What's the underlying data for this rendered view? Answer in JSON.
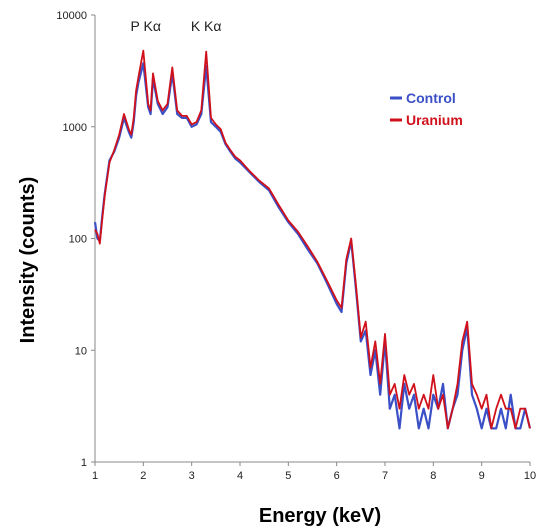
{
  "chart_data": {
    "type": "line",
    "xlabel": "Energy (keV)",
    "ylabel": "Intensity (counts)",
    "xlim": [
      1,
      10
    ],
    "ylim": [
      1,
      10000
    ],
    "yscale": "log",
    "grid": false,
    "legend_position": "top-right",
    "x_ticks": [
      "1",
      "2",
      "3",
      "4",
      "5",
      "6",
      "7",
      "8",
      "9",
      "10"
    ],
    "y_ticks": [
      "1",
      "10",
      "100",
      "1000",
      "10000"
    ],
    "annotations": [
      {
        "text": "P Kα",
        "x": 2.05,
        "y": 8000
      },
      {
        "text": "K Kα",
        "x": 3.3,
        "y": 8000
      }
    ],
    "series": [
      {
        "name": "Control",
        "color": "#3b4fc6",
        "x": [
          1.0,
          1.05,
          1.1,
          1.15,
          1.2,
          1.3,
          1.4,
          1.5,
          1.6,
          1.7,
          1.75,
          1.8,
          1.85,
          1.9,
          2.0,
          2.1,
          2.15,
          2.2,
          2.3,
          2.4,
          2.5,
          2.6,
          2.7,
          2.8,
          2.9,
          3.0,
          3.1,
          3.2,
          3.3,
          3.4,
          3.5,
          3.6,
          3.7,
          3.8,
          3.9,
          4.0,
          4.2,
          4.4,
          4.6,
          4.8,
          5.0,
          5.2,
          5.4,
          5.6,
          5.8,
          6.0,
          6.1,
          6.2,
          6.3,
          6.4,
          6.5,
          6.6,
          6.7,
          6.8,
          6.9,
          7.0,
          7.1,
          7.2,
          7.3,
          7.4,
          7.5,
          7.6,
          7.7,
          7.8,
          7.9,
          8.0,
          8.1,
          8.2,
          8.3,
          8.4,
          8.5,
          8.6,
          8.7,
          8.8,
          8.9,
          9.0,
          9.1,
          9.2,
          9.3,
          9.4,
          9.5,
          9.6,
          9.7,
          9.8,
          9.9,
          10.0
        ],
        "y": [
          140,
          100,
          95,
          160,
          250,
          500,
          600,
          800,
          1200,
          900,
          800,
          1100,
          1900,
          2500,
          3700,
          1500,
          1300,
          2700,
          1600,
          1300,
          1500,
          3000,
          1300,
          1200,
          1200,
          1000,
          1050,
          1300,
          3500,
          1100,
          1000,
          900,
          700,
          600,
          520,
          480,
          390,
          320,
          270,
          190,
          140,
          110,
          80,
          60,
          40,
          26,
          22,
          60,
          95,
          35,
          12,
          15,
          6,
          10,
          4,
          12,
          3,
          4,
          2,
          5,
          3,
          4,
          2,
          3,
          2,
          4,
          3,
          5,
          2,
          3,
          4,
          10,
          16,
          4,
          3,
          2,
          3,
          2,
          2,
          3,
          2,
          4,
          2,
          2,
          3,
          2
        ]
      },
      {
        "name": "Uranium",
        "color": "#d0111b",
        "x": [
          1.0,
          1.05,
          1.1,
          1.15,
          1.2,
          1.3,
          1.4,
          1.5,
          1.6,
          1.7,
          1.75,
          1.8,
          1.85,
          1.9,
          2.0,
          2.1,
          2.15,
          2.2,
          2.3,
          2.4,
          2.5,
          2.6,
          2.7,
          2.8,
          2.9,
          3.0,
          3.1,
          3.2,
          3.3,
          3.4,
          3.5,
          3.6,
          3.7,
          3.8,
          3.9,
          4.0,
          4.2,
          4.4,
          4.6,
          4.8,
          5.0,
          5.2,
          5.4,
          5.6,
          5.8,
          6.0,
          6.1,
          6.2,
          6.3,
          6.4,
          6.5,
          6.6,
          6.7,
          6.8,
          6.9,
          7.0,
          7.1,
          7.2,
          7.3,
          7.4,
          7.5,
          7.6,
          7.7,
          7.8,
          7.9,
          8.0,
          8.1,
          8.2,
          8.3,
          8.4,
          8.5,
          8.6,
          8.7,
          8.8,
          8.9,
          9.0,
          9.1,
          9.2,
          9.3,
          9.4,
          9.5,
          9.6,
          9.7,
          9.8,
          9.9,
          10.0
        ],
        "y": [
          120,
          110,
          90,
          150,
          240,
          480,
          620,
          850,
          1300,
          950,
          850,
          1200,
          2100,
          2800,
          4800,
          1600,
          1400,
          3000,
          1700,
          1400,
          1600,
          3400,
          1400,
          1250,
          1250,
          1050,
          1100,
          1400,
          4700,
          1200,
          1050,
          950,
          720,
          620,
          540,
          500,
          400,
          330,
          280,
          200,
          145,
          115,
          85,
          62,
          42,
          28,
          24,
          65,
          100,
          38,
          13,
          18,
          7,
          12,
          5,
          14,
          4,
          5,
          3,
          6,
          4,
          5,
          3,
          4,
          3,
          6,
          3,
          4,
          2,
          3,
          5,
          12,
          18,
          5,
          4,
          3,
          4,
          2,
          3,
          4,
          3,
          3,
          2,
          3,
          3,
          2
        ]
      }
    ]
  }
}
